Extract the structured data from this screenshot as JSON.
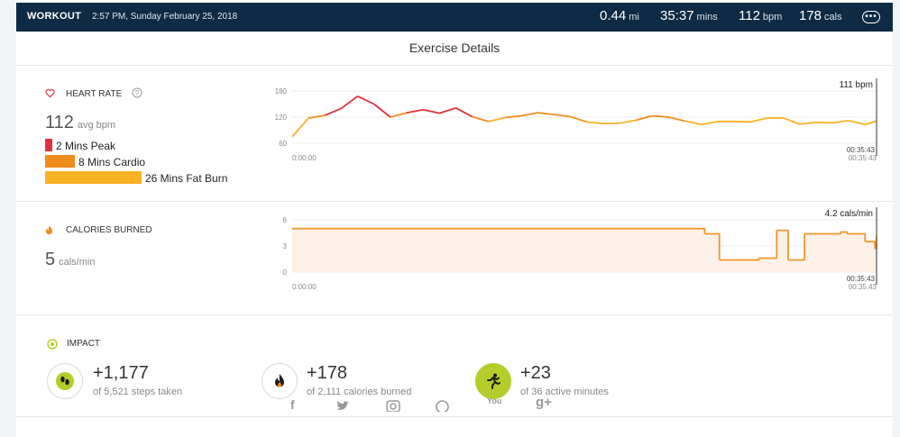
{
  "header": {
    "title": "WORKOUT",
    "datetime": "2:57 PM, Sunday February 25, 2018",
    "stats": [
      {
        "value": "0.44",
        "unit": "mi"
      },
      {
        "value": "35:37",
        "unit": "mins"
      },
      {
        "value": "112",
        "unit": "bpm"
      },
      {
        "value": "178",
        "unit": "cals"
      }
    ],
    "more_icon": "ellipsis-icon"
  },
  "page_title": "Exercise Details",
  "heart_rate": {
    "label": "HEART RATE",
    "avg_value": "112",
    "avg_unit": "avg bpm",
    "zones": [
      {
        "label": "2 Mins Peak",
        "minutes": 2,
        "color": "#e0303b"
      },
      {
        "label": "8 Mins Cardio",
        "minutes": 8,
        "color": "#f08c1e"
      },
      {
        "label": "26 Mins Fat Burn",
        "minutes": 26,
        "color": "#fbb124"
      }
    ],
    "chart": {
      "y_ticks": [
        "180",
        "120",
        "60"
      ],
      "x_start": "0:00:00",
      "x_end": "00:35:43",
      "cursor_value": "111 bpm",
      "cursor_time": "00:35:43"
    }
  },
  "calories": {
    "label": "CALORIES BURNED",
    "value": "5",
    "unit": "cals/min",
    "chart": {
      "y_ticks": [
        "6",
        "3",
        "0"
      ],
      "x_start": "0:00:00",
      "x_end": "00:35:43",
      "cursor_value": "4.2 cals/min",
      "cursor_time": "00:35:43"
    }
  },
  "impact": {
    "label": "IMPACT",
    "items": [
      {
        "value": "+1,177",
        "sub": "of 5,521 steps taken",
        "icon": "footsteps-icon"
      },
      {
        "value": "+178",
        "sub": "of 2,111 calories burned",
        "icon": "flame-icon"
      },
      {
        "value": "+23",
        "sub": "of 36 active minutes",
        "icon": "running-person-icon"
      }
    ]
  },
  "share": {
    "youtube_label": "You"
  },
  "colors": {
    "header_bg": "#0f2a44",
    "peak": "#e0303b",
    "cardio": "#f08c1e",
    "fat_burn": "#fbb124",
    "active_green": "#b5cd2a"
  },
  "chart_data": [
    {
      "type": "line",
      "ylim": [
        60,
        180
      ],
      "y_ticks": [
        60,
        120,
        180
      ],
      "x": [
        0,
        1,
        2,
        3,
        4,
        5,
        6,
        7,
        8,
        9,
        10,
        11,
        12,
        13,
        14,
        15,
        16,
        17,
        18,
        19,
        20,
        21,
        22,
        23,
        24,
        25,
        26,
        27,
        28,
        29,
        30,
        31,
        32,
        33,
        34,
        35,
        35.7
      ],
      "series": [
        {
          "values": [
            75,
            118,
            124,
            140,
            168,
            150,
            120,
            130,
            137,
            129,
            141,
            121,
            110,
            119,
            123,
            130,
            126,
            121,
            109,
            105,
            106,
            113,
            123,
            120,
            111,
            103,
            110,
            110,
            109,
            118,
            118,
            104,
            108,
            107,
            112,
            103,
            111
          ]
        }
      ]
    },
    {
      "type": "line",
      "ylim": [
        0,
        6
      ],
      "y_ticks": [
        0,
        3,
        6
      ],
      "x": [
        0,
        24.2,
        25.2,
        26.1,
        28.5,
        29.6,
        30.3,
        31.3,
        33.5,
        33.9,
        35,
        35.6,
        35.7
      ],
      "series": [
        {
          "values": [
            5,
            5,
            4.4,
            1.4,
            1.6,
            4.8,
            1.4,
            4.4,
            4.6,
            4.4,
            3.5,
            2.7,
            4.2
          ]
        }
      ]
    }
  ]
}
